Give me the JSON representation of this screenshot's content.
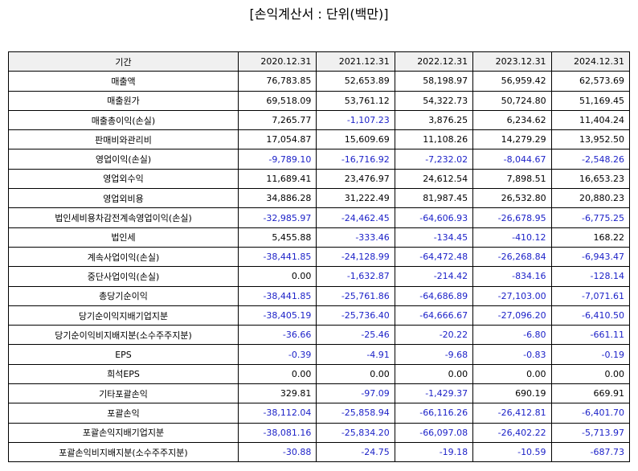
{
  "title": "[손익계산서 : 단위(백만)]",
  "table": {
    "header": [
      "기간",
      "2020.12.31",
      "2021.12.31",
      "2022.12.31",
      "2023.12.31",
      "2024.12.31"
    ],
    "rows": [
      [
        "매출액",
        "76,783.85",
        "52,653.89",
        "58,198.97",
        "56,959.42",
        "62,573.69"
      ],
      [
        "매출원가",
        "69,518.09",
        "53,761.12",
        "54,322.73",
        "50,724.80",
        "51,169.45"
      ],
      [
        "매출총이익(손실)",
        "7,265.77",
        "-1,107.23",
        "3,876.25",
        "6,234.62",
        "11,404.24"
      ],
      [
        "판매비와관리비",
        "17,054.87",
        "15,609.69",
        "11,108.26",
        "14,279.29",
        "13,952.50"
      ],
      [
        "영업이익(손실)",
        "-9,789.10",
        "-16,716.92",
        "-7,232.02",
        "-8,044.67",
        "-2,548.26"
      ],
      [
        "영업외수익",
        "11,689.41",
        "23,476.97",
        "24,612.54",
        "7,898.51",
        "16,653.23"
      ],
      [
        "영업외비용",
        "34,886.28",
        "31,222.49",
        "81,987.45",
        "26,532.80",
        "20,880.23"
      ],
      [
        "법인세비용차감전계속영업이익(손실)",
        "-32,985.97",
        "-24,462.45",
        "-64,606.93",
        "-26,678.95",
        "-6,775.25"
      ],
      [
        "법인세",
        "5,455.88",
        "-333.46",
        "-134.45",
        "-410.12",
        "168.22"
      ],
      [
        "계속사업이익(손실)",
        "-38,441.85",
        "-24,128.99",
        "-64,472.48",
        "-26,268.84",
        "-6,943.47"
      ],
      [
        "중단사업이익(손실)",
        "0.00",
        "-1,632.87",
        "-214.42",
        "-834.16",
        "-128.14"
      ],
      [
        "총당기순이익",
        "-38,441.85",
        "-25,761.86",
        "-64,686.89",
        "-27,103.00",
        "-7,071.61"
      ],
      [
        "당기순이익지배기업지분",
        "-38,405.19",
        "-25,736.40",
        "-64,666.67",
        "-27,096.20",
        "-6,410.50"
      ],
      [
        "당기순이익비지배지분(소수주주지분)",
        "-36.66",
        "-25.46",
        "-20.22",
        "-6.80",
        "-661.11"
      ],
      [
        "EPS",
        "-0.39",
        "-4.91",
        "-9.68",
        "-0.83",
        "-0.19"
      ],
      [
        "희석EPS",
        "0.00",
        "0.00",
        "0.00",
        "0.00",
        "0.00"
      ],
      [
        "기타포괄손익",
        "329.81",
        "-97.09",
        "-1,429.37",
        "690.19",
        "669.91"
      ],
      [
        "포괄손익",
        "-38,112.04",
        "-25,858.94",
        "-66,116.26",
        "-26,412.81",
        "-6,401.70"
      ],
      [
        "포괄손익지배기업지분",
        "-38,081.16",
        "-25,834.20",
        "-66,097.08",
        "-26,402.22",
        "-5,713.97"
      ],
      [
        "포괄손익비지배지분(소수주주지분)",
        "-30.88",
        "-24.75",
        "-19.18",
        "-10.59",
        "-687.73"
      ]
    ]
  }
}
